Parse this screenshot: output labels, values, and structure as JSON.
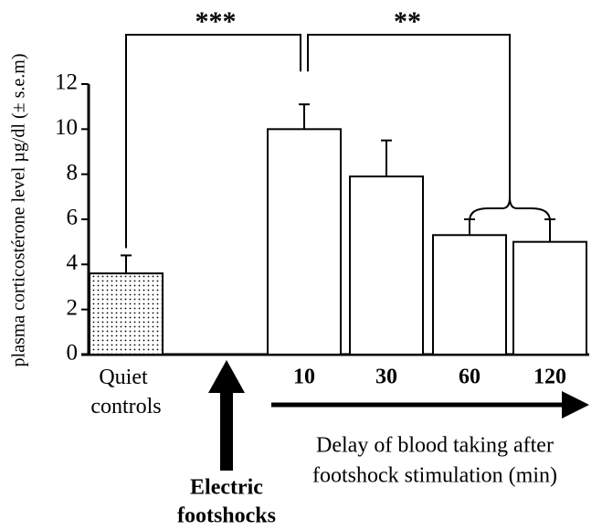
{
  "chart_data": {
    "type": "bar",
    "y_label": "plasma corticostérone level µg/dl (± s.e.m)",
    "categories": [
      "Quiet controls",
      null,
      "10",
      "30",
      "60",
      "120"
    ],
    "values": [
      3.6,
      null,
      10.0,
      7.9,
      5.3,
      5.0
    ],
    "errors": [
      0.8,
      null,
      1.1,
      1.6,
      0.7,
      1.0
    ],
    "fill_patterns": [
      "dots",
      null,
      "none",
      "none",
      "none",
      "none"
    ],
    "color": "#000000",
    "ylim": [
      0,
      12
    ],
    "yticks": [
      0,
      2,
      4,
      6,
      8,
      10,
      12
    ],
    "annotations": {
      "significance_1": "***",
      "significance_2": "**",
      "stimulus": [
        "Electric",
        "footshocks"
      ],
      "x_note": [
        "Delay of blood taking after",
        "footshock stimulation (min)"
      ]
    }
  }
}
